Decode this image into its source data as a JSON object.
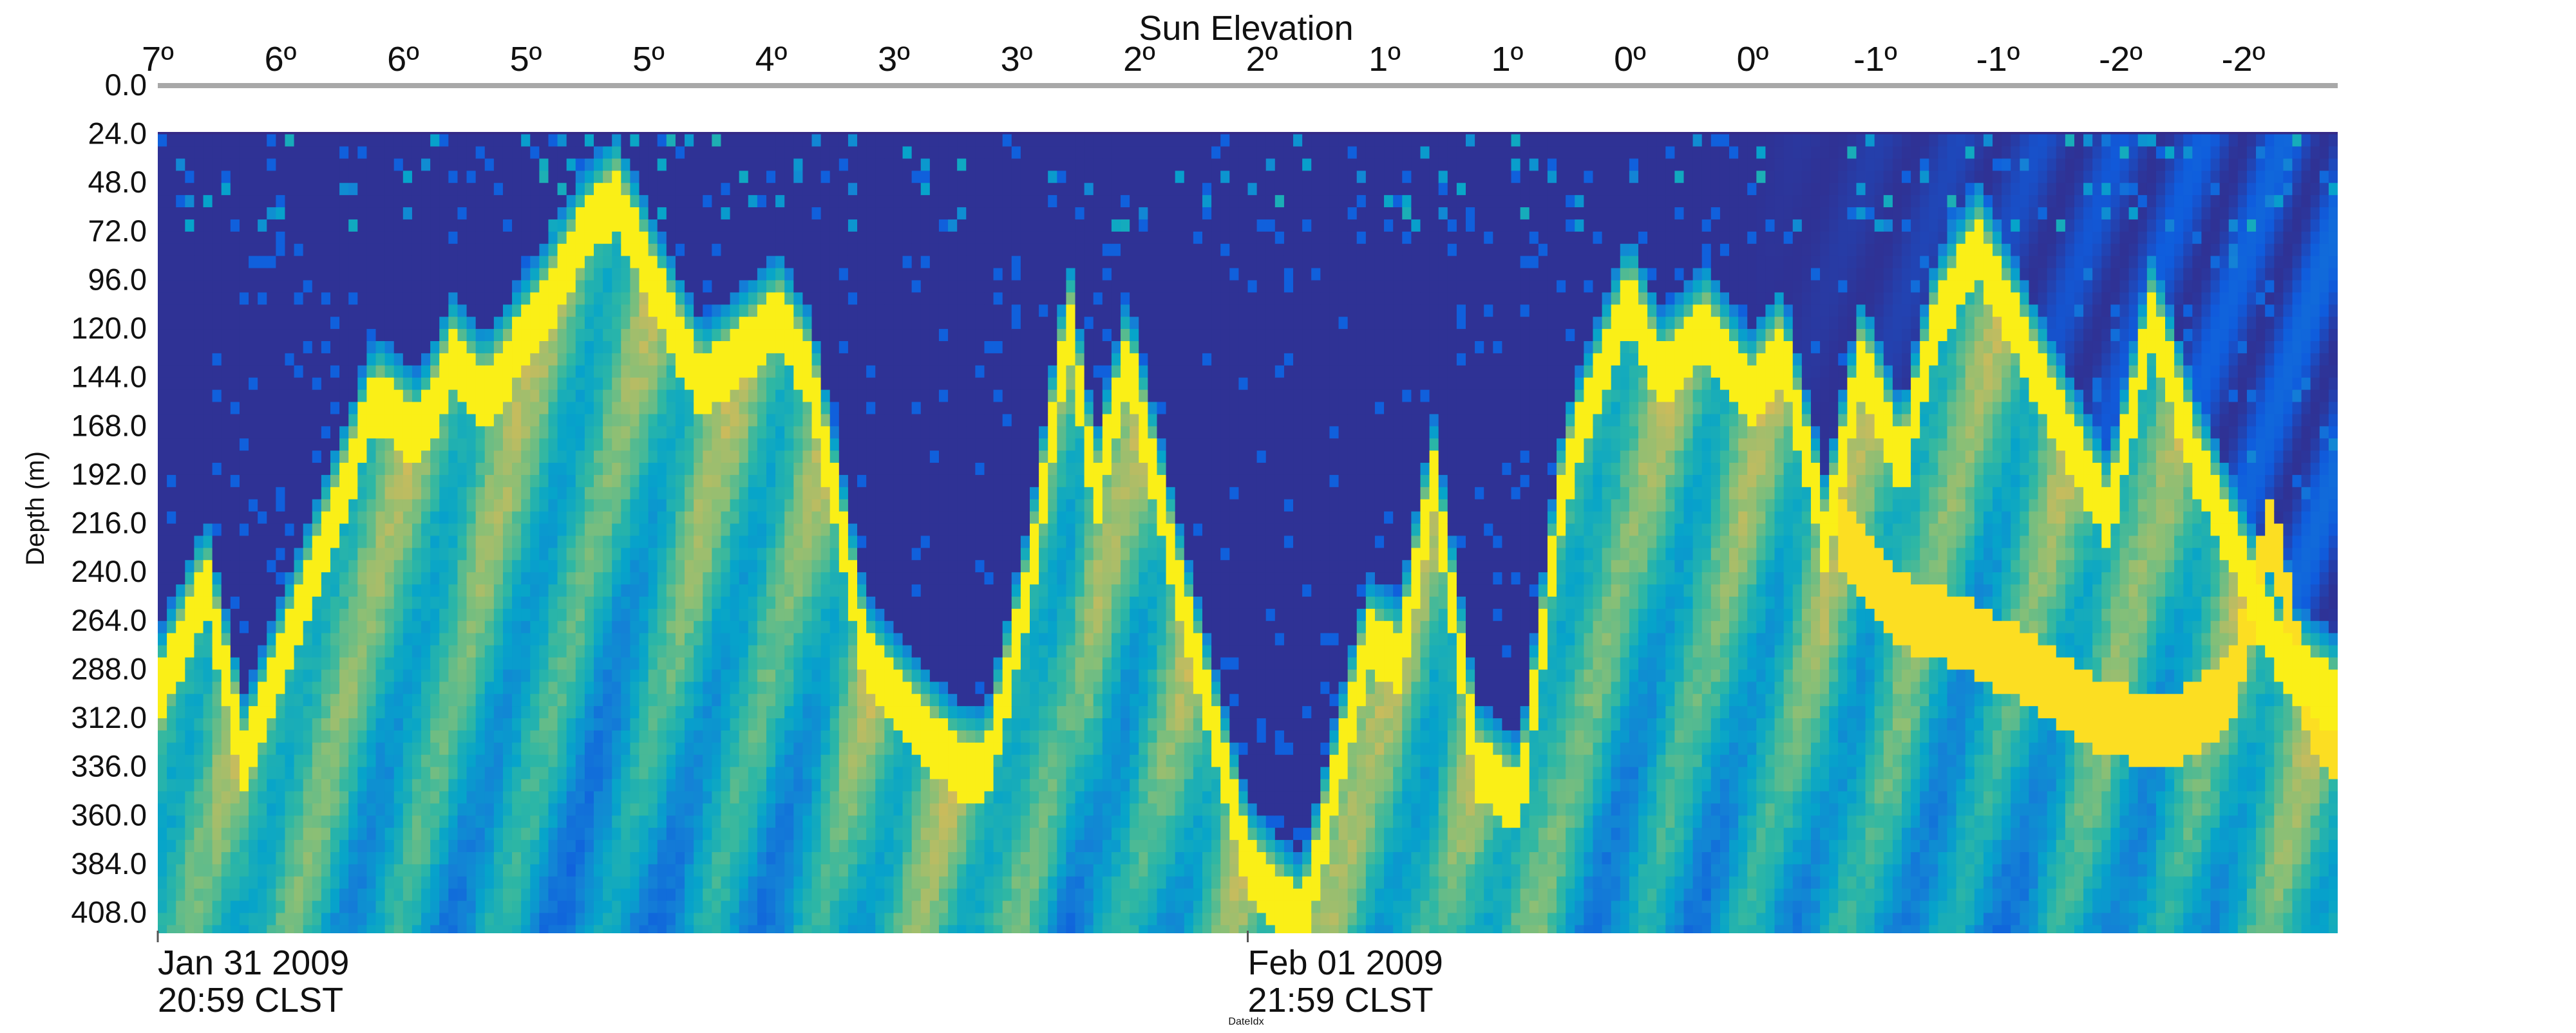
{
  "chart_data": {
    "type": "heatmap",
    "title": "Sun Elevation",
    "ylabel": "Depth (m)",
    "xlabel": "DateIdx",
    "top_axis_ticks": [
      "7º",
      "6º",
      "6º",
      "5º",
      "5º",
      "4º",
      "3º",
      "3º",
      "2º",
      "2º",
      "1º",
      "1º",
      "0º",
      "0º",
      "-1º",
      "-1º",
      "-2º",
      "-2º"
    ],
    "y_ticks": [
      "0.0",
      "24.0",
      "48.0",
      "72.0",
      "96.0",
      "120.0",
      "144.0",
      "168.0",
      "192.0",
      "216.0",
      "240.0",
      "264.0",
      "288.0",
      "312.0",
      "336.0",
      "360.0",
      "384.0",
      "408.0"
    ],
    "y_range": [
      0,
      418
    ],
    "blanked_depth_range": [
      0,
      24
    ],
    "x_ticks": [
      {
        "line1": "Jan 31 2009",
        "line2": "20:59 CLST"
      },
      {
        "line1": "Feb 01 2009",
        "line2": "21:59 CLST"
      }
    ],
    "colormap": [
      "#352a87",
      "#0f5cdd",
      "#1481d6",
      "#06a4ca",
      "#2eb7a4",
      "#87bf77",
      "#d1bb59",
      "#fec832",
      "#f9fb0e"
    ],
    "blank_color": "#a8a8a8",
    "scattering_layer": {
      "description_units": "depth in metres of the strongest backscatter layer across the record (0 = left edge, 1 = right edge of record)",
      "peak_layer": [
        [
          0.0,
          300
        ],
        [
          0.022,
          240
        ],
        [
          0.04,
          330
        ],
        [
          0.07,
          240
        ],
        [
          0.1,
          150
        ],
        [
          0.12,
          170
        ],
        [
          0.135,
          130
        ],
        [
          0.15,
          150
        ],
        [
          0.175,
          110
        ],
        [
          0.195,
          70
        ],
        [
          0.21,
          50
        ],
        [
          0.23,
          100
        ],
        [
          0.25,
          145
        ],
        [
          0.265,
          130
        ],
        [
          0.285,
          110
        ],
        [
          0.3,
          140
        ],
        [
          0.325,
          280
        ],
        [
          0.34,
          300
        ],
        [
          0.365,
          330
        ],
        [
          0.38,
          335
        ],
        [
          0.4,
          240
        ],
        [
          0.418,
          110
        ],
        [
          0.43,
          200
        ],
        [
          0.445,
          130
        ],
        [
          0.47,
          250
        ],
        [
          0.5,
          380
        ],
        [
          0.525,
          410
        ],
        [
          0.54,
          340
        ],
        [
          0.555,
          270
        ],
        [
          0.57,
          280
        ],
        [
          0.585,
          190
        ],
        [
          0.605,
          330
        ],
        [
          0.625,
          350
        ],
        [
          0.645,
          190
        ],
        [
          0.675,
          100
        ],
        [
          0.69,
          140
        ],
        [
          0.71,
          115
        ],
        [
          0.73,
          150
        ],
        [
          0.745,
          125
        ],
        [
          0.765,
          220
        ],
        [
          0.782,
          130
        ],
        [
          0.8,
          185
        ],
        [
          0.815,
          115
        ],
        [
          0.835,
          75
        ],
        [
          0.85,
          110
        ],
        [
          0.87,
          155
        ],
        [
          0.895,
          210
        ],
        [
          0.915,
          110
        ],
        [
          0.935,
          180
        ],
        [
          0.955,
          230
        ],
        [
          0.975,
          280
        ],
        [
          1.0,
          300
        ]
      ],
      "deep_layer": [
        [
          0.77,
          220
        ],
        [
          0.8,
          260
        ],
        [
          0.83,
          270
        ],
        [
          0.86,
          290
        ],
        [
          0.89,
          310
        ],
        [
          0.92,
          320
        ],
        [
          0.95,
          300
        ],
        [
          0.97,
          220
        ],
        [
          0.985,
          300
        ],
        [
          1.0,
          330
        ]
      ]
    }
  }
}
